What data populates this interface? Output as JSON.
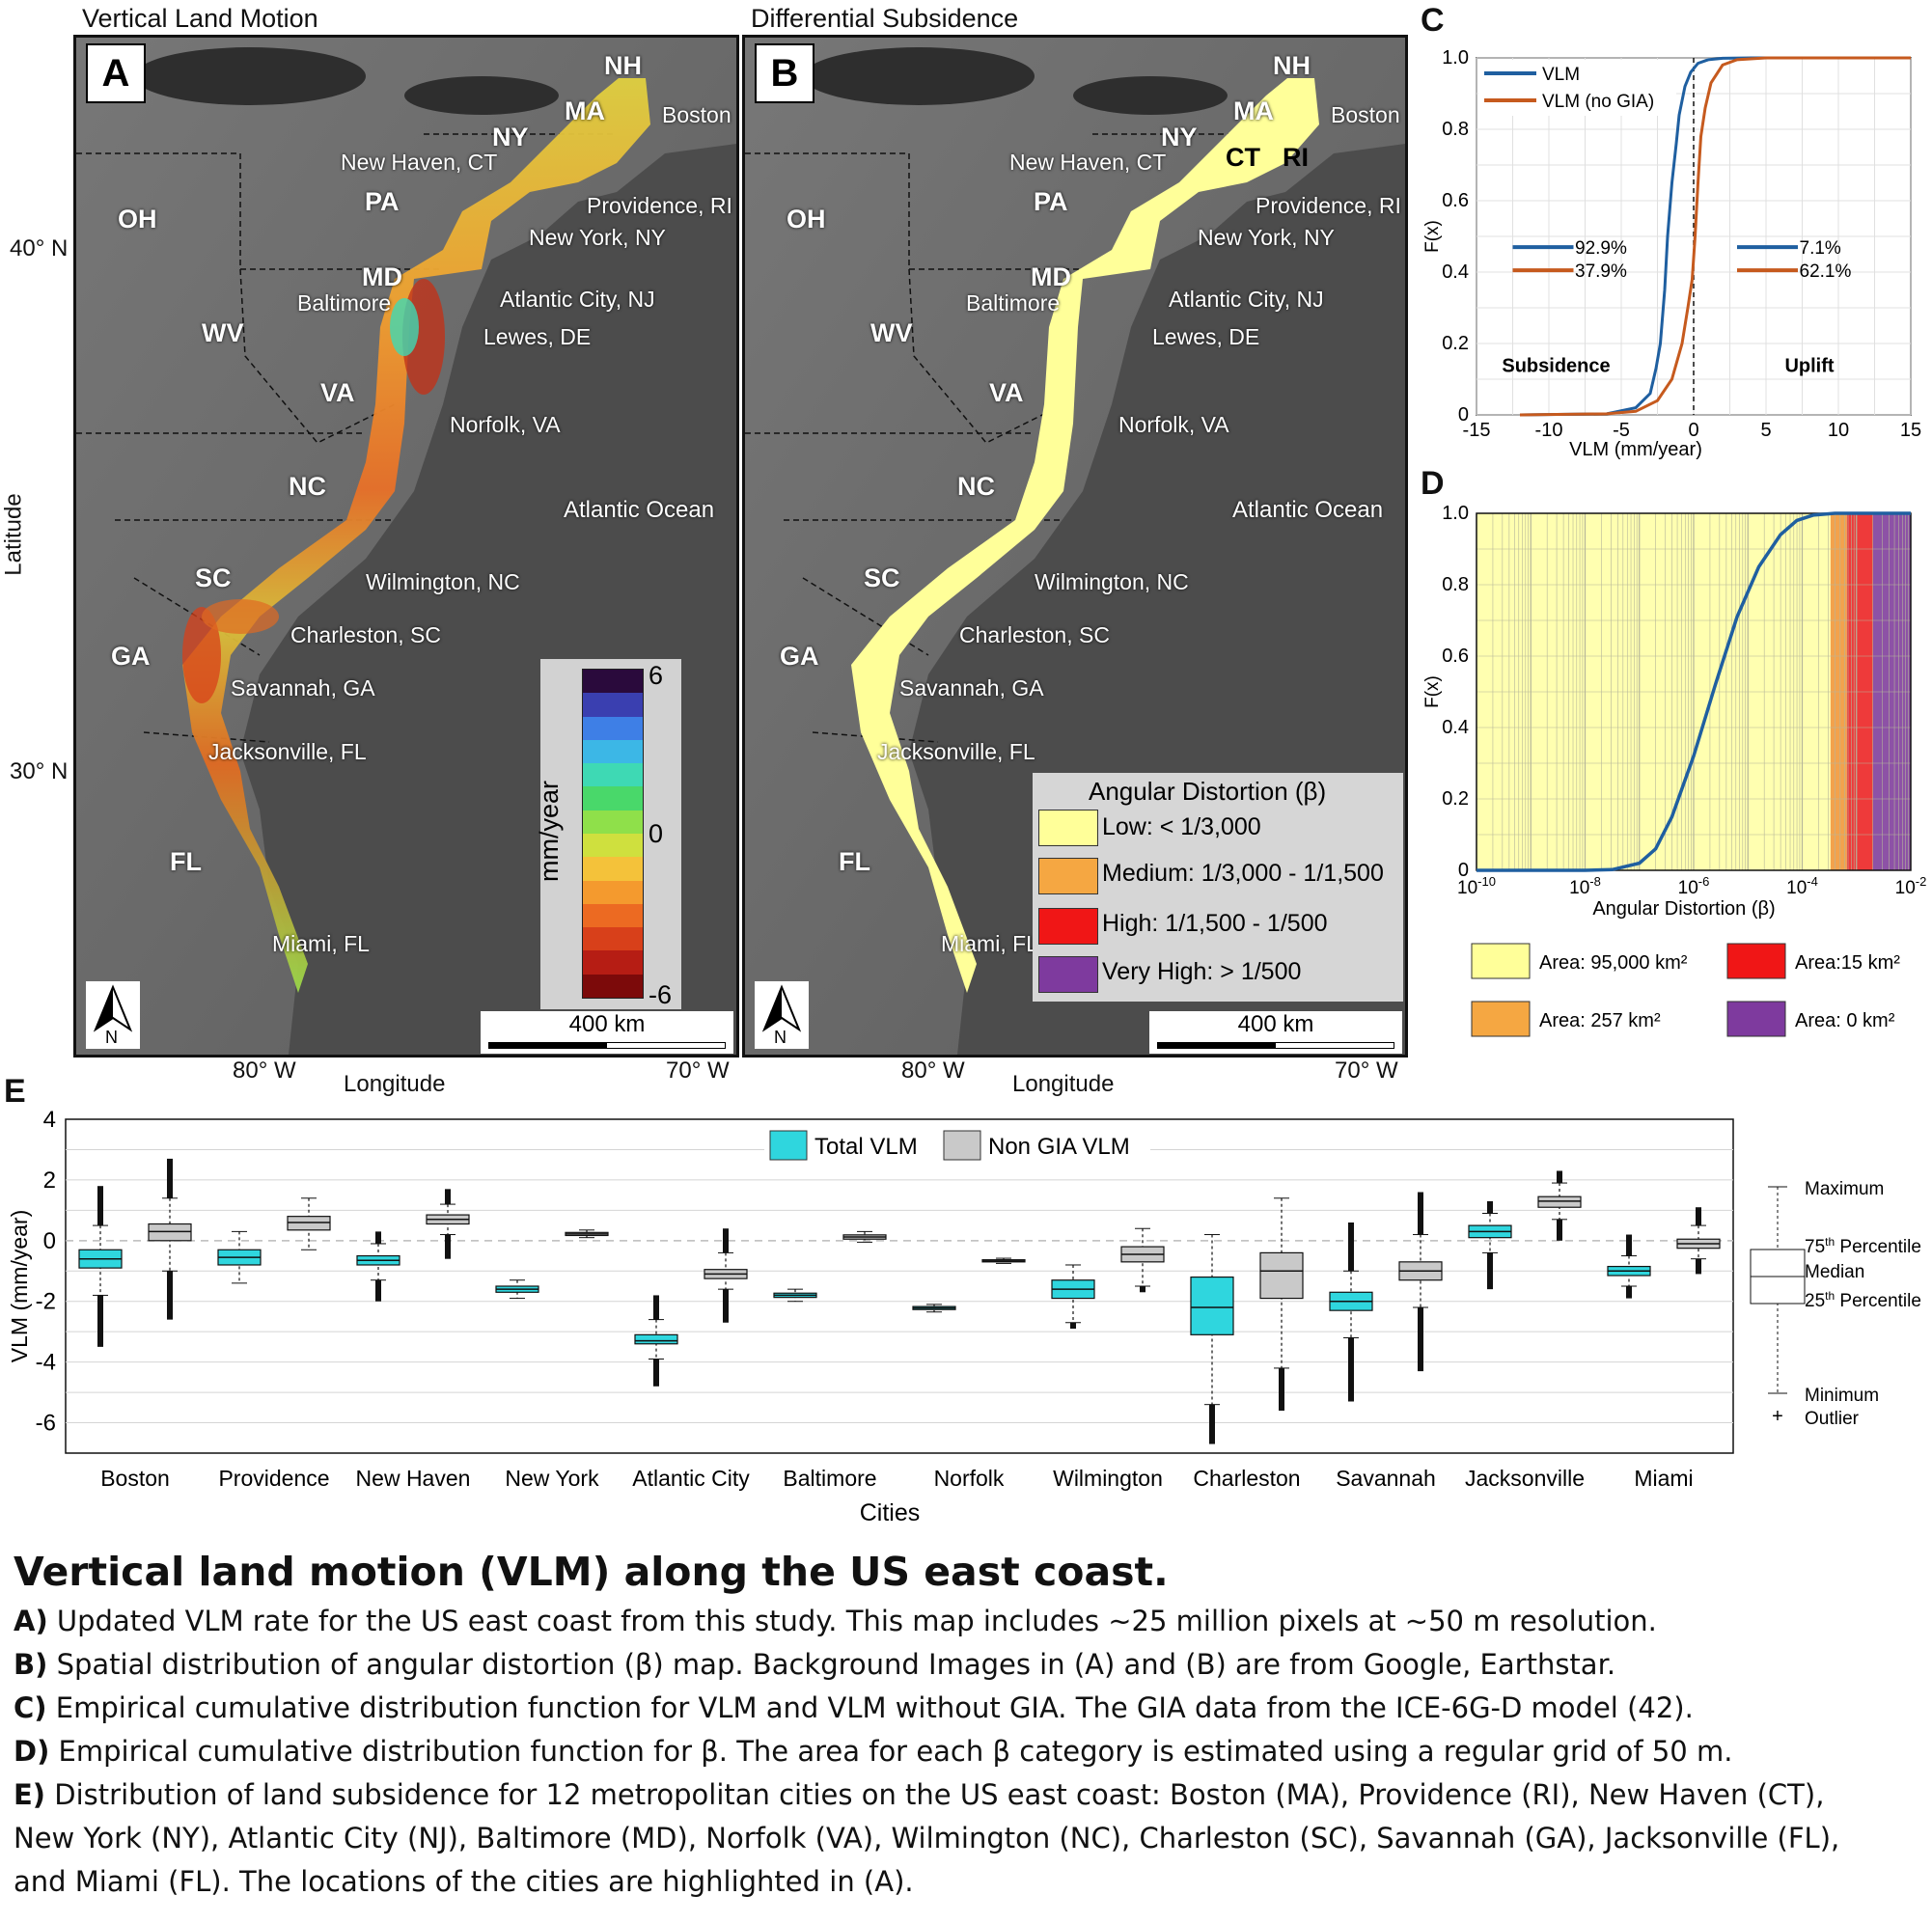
{
  "panelA": {
    "letter": "A",
    "title": "Vertical Land Motion",
    "states": [
      "NH",
      "MA",
      "NY",
      "PA",
      "OH",
      "MD",
      "WV",
      "VA",
      "NC",
      "SC",
      "GA",
      "FL"
    ],
    "cities": [
      "Boston",
      "New Haven, CT",
      "Providence, RI",
      "New York, NY",
      "Baltimore",
      "Atlantic City, NJ",
      "Lewes, DE",
      "Norfolk, VA",
      "Atlantic Ocean",
      "Wilmington, NC",
      "Charleston, SC",
      "Savannah, GA",
      "Jacksonville, FL",
      "Miami, FL"
    ],
    "colorbar_unit": "mm/year",
    "colorbar_ticks": [
      "6",
      "0",
      "-6"
    ],
    "colorbar_colors": [
      "#2a0a3c",
      "#3a3fb0",
      "#3e7fe6",
      "#3cb7e6",
      "#3ed9b4",
      "#49d86a",
      "#8fe04a",
      "#cfe03e",
      "#f4c23a",
      "#f49a2e",
      "#ec6a22",
      "#d8401a",
      "#b61d14",
      "#7c0a0a"
    ],
    "scale": "400 km",
    "north": "N"
  },
  "panelB": {
    "letter": "B",
    "title": "Differential Subsidence",
    "states": [
      "NH",
      "MA",
      "NY",
      "CT",
      "RI",
      "PA",
      "OH",
      "MD",
      "WV",
      "VA",
      "NC",
      "SC",
      "GA",
      "FL"
    ],
    "cities": [
      "Boston",
      "New Haven, CT",
      "Providence, RI",
      "New York, NY",
      "Baltimore",
      "Atlantic City, NJ",
      "Lewes, DE",
      "Norfolk, VA",
      "Atlantic Ocean",
      "Wilmington, NC",
      "Charleston, SC",
      "Savannah, GA",
      "Jacksonville, FL",
      "Miami, FL"
    ],
    "legend_title": "Angular Distortion (β)",
    "legend": [
      {
        "label": "Low: < 1/3,000",
        "color": "#ffff99"
      },
      {
        "label": "Medium: 1/3,000 - 1/1,500",
        "color": "#f5a742"
      },
      {
        "label": "High: 1/1,500 - 1/500",
        "color": "#f01616"
      },
      {
        "label": "Very High: > 1/500",
        "color": "#7e3a9e"
      }
    ],
    "scale": "400 km",
    "north": "N"
  },
  "map_axes": {
    "lat_label": "Latitude",
    "lat_ticks": [
      "40° N",
      "30° N"
    ],
    "lon_label": "Longitude",
    "lon_ticks": [
      "80° W",
      "70° W"
    ]
  },
  "chart_data": [
    {
      "panel": "C",
      "type": "line",
      "xlabel": "VLM (mm/year)",
      "ylabel": "F(x)",
      "xlim": [
        -15,
        15
      ],
      "ylim": [
        0,
        1
      ],
      "xticks": [
        -15,
        -10,
        -5,
        0,
        5,
        10,
        15
      ],
      "yticks": [
        0,
        0.2,
        0.4,
        0.6,
        0.8,
        1.0
      ],
      "grid": true,
      "legend_position": "top-left",
      "series": [
        {
          "name": "VLM",
          "color": "#1f5fa0",
          "x": [
            -12,
            -6,
            -4,
            -3,
            -2.6,
            -2.3,
            -2.0,
            -1.8,
            -1.5,
            -1.2,
            -1.0,
            -0.6,
            -0.2,
            0.3,
            1,
            2,
            4,
            15
          ],
          "y": [
            0,
            0.003,
            0.02,
            0.06,
            0.13,
            0.2,
            0.35,
            0.5,
            0.65,
            0.76,
            0.84,
            0.92,
            0.96,
            0.985,
            0.995,
            0.999,
            1,
            1
          ]
        },
        {
          "name": "VLM (no GIA)",
          "color": "#c65a1e",
          "x": [
            -12,
            -6,
            -4,
            -2.5,
            -1.5,
            -0.8,
            -0.4,
            -0.1,
            0.1,
            0.3,
            0.5,
            0.8,
            1.2,
            2,
            3,
            5,
            15
          ],
          "y": [
            0,
            0.003,
            0.01,
            0.04,
            0.1,
            0.2,
            0.3,
            0.38,
            0.5,
            0.65,
            0.78,
            0.86,
            0.93,
            0.98,
            0.995,
            1,
            1
          ]
        }
      ],
      "annotations": {
        "left_values": [
          "92.9%",
          "37.9%"
        ],
        "right_values": [
          "7.1%",
          "62.1%"
        ],
        "left_label": "Subsidence",
        "right_label": "Uplift"
      }
    },
    {
      "panel": "D",
      "type": "line",
      "xlabel": "Angular Distortion (β)",
      "ylabel": "F(x)",
      "xscale": "log",
      "xlim": [
        1e-10,
        0.01
      ],
      "ylim": [
        0,
        1
      ],
      "xtick_labels": [
        "10-10",
        "10-8",
        "10-6",
        "10-4",
        "10-2"
      ],
      "yticks": [
        0,
        0.2,
        0.4,
        0.6,
        0.8,
        1.0
      ],
      "bands": [
        {
          "from": 1e-10,
          "to": 0.000333,
          "color": "#ffffb0"
        },
        {
          "from": 0.000333,
          "to": 0.000667,
          "color": "#f3a24c"
        },
        {
          "from": 0.000667,
          "to": 0.002,
          "color": "#ee3a3a"
        },
        {
          "from": 0.002,
          "to": 0.01,
          "color": "#8d52a6"
        }
      ],
      "series": [
        {
          "name": "β",
          "color": "#1f5fa0",
          "log10x": [
            -10,
            -8,
            -7.5,
            -7,
            -6.7,
            -6.4,
            -6.0,
            -5.6,
            -5.2,
            -4.8,
            -4.4,
            -4.1,
            -3.8,
            -3.4,
            -2
          ],
          "y": [
            0,
            0,
            0.002,
            0.02,
            0.06,
            0.15,
            0.32,
            0.52,
            0.71,
            0.85,
            0.94,
            0.98,
            0.995,
            1,
            1
          ]
        }
      ],
      "legend": [
        {
          "label": "Area: 95,000 km²",
          "color": "#ffff99"
        },
        {
          "label": "Area:15 km²",
          "color": "#f01616"
        },
        {
          "label": "Area: 257 km²",
          "color": "#f5a742"
        },
        {
          "label": "Area: 0 km²",
          "color": "#7e3a9e"
        }
      ]
    },
    {
      "panel": "E",
      "type": "box",
      "xlabel": "Cities",
      "ylabel": "VLM (mm/year)",
      "ylim": [
        -7,
        4
      ],
      "yticks": [
        -6,
        -4,
        -2,
        0,
        2,
        4
      ],
      "grid": true,
      "legend_position": "top-center",
      "categories": [
        "Boston",
        "Providence",
        "New Haven",
        "New York",
        "Atlantic City",
        "Baltimore",
        "Norfolk",
        "Wilmington",
        "Charleston",
        "Savannah",
        "Jacksonville",
        "Miami"
      ],
      "series": [
        {
          "name": "Total VLM",
          "color": "#2fd6de",
          "boxes": [
            {
              "whislo": -1.8,
              "q1": -0.9,
              "med": -0.6,
              "q3": -0.3,
              "whishi": 0.5,
              "fliers": [
                -3.5,
                1.8
              ]
            },
            {
              "whislo": -1.4,
              "q1": -0.8,
              "med": -0.55,
              "q3": -0.3,
              "whishi": 0.3,
              "fliers": []
            },
            {
              "whislo": -1.3,
              "q1": -0.8,
              "med": -0.65,
              "q3": -0.5,
              "whishi": -0.1,
              "fliers": [
                -2.0,
                0.3
              ]
            },
            {
              "whislo": -1.9,
              "q1": -1.7,
              "med": -1.6,
              "q3": -1.5,
              "whishi": -1.3,
              "fliers": []
            },
            {
              "whislo": -3.9,
              "q1": -3.4,
              "med": -3.3,
              "q3": -3.1,
              "whishi": -2.6,
              "fliers": [
                -4.8,
                -1.8
              ]
            },
            {
              "whislo": -2.0,
              "q1": -1.87,
              "med": -1.8,
              "q3": -1.73,
              "whishi": -1.6,
              "fliers": []
            },
            {
              "whislo": -2.35,
              "q1": -2.27,
              "med": -2.22,
              "q3": -2.17,
              "whishi": -2.1,
              "fliers": []
            },
            {
              "whislo": -2.7,
              "q1": -1.9,
              "med": -1.6,
              "q3": -1.3,
              "whishi": -0.8,
              "fliers": [
                -2.9
              ]
            },
            {
              "whislo": -5.4,
              "q1": -3.1,
              "med": -2.2,
              "q3": -1.2,
              "whishi": 0.2,
              "fliers": [
                -6.7
              ]
            },
            {
              "whislo": -3.2,
              "q1": -2.3,
              "med": -2.0,
              "q3": -1.7,
              "whishi": -1.0,
              "fliers": [
                -5.3,
                0.6
              ]
            },
            {
              "whislo": -0.4,
              "q1": 0.1,
              "med": 0.3,
              "q3": 0.5,
              "whishi": 0.9,
              "fliers": [
                -1.6,
                1.3
              ]
            },
            {
              "whislo": -1.5,
              "q1": -1.15,
              "med": -1.0,
              "q3": -0.85,
              "whishi": -0.5,
              "fliers": [
                -1.9,
                0.2
              ]
            }
          ]
        },
        {
          "name": "Non GIA VLM",
          "color": "#c9c9c9",
          "boxes": [
            {
              "whislo": -1.0,
              "q1": 0.0,
              "med": 0.3,
              "q3": 0.55,
              "whishi": 1.4,
              "fliers": [
                -2.6,
                2.7
              ]
            },
            {
              "whislo": -0.3,
              "q1": 0.35,
              "med": 0.6,
              "q3": 0.8,
              "whishi": 1.4,
              "fliers": []
            },
            {
              "whislo": 0.2,
              "q1": 0.55,
              "med": 0.7,
              "q3": 0.85,
              "whishi": 1.2,
              "fliers": [
                -0.6,
                1.7
              ]
            },
            {
              "whislo": 0.1,
              "q1": 0.17,
              "med": 0.22,
              "q3": 0.27,
              "whishi": 0.35,
              "fliers": []
            },
            {
              "whislo": -1.6,
              "q1": -1.25,
              "med": -1.1,
              "q3": -0.95,
              "whishi": -0.4,
              "fliers": [
                -2.7,
                0.4
              ]
            },
            {
              "whislo": -0.05,
              "q1": 0.05,
              "med": 0.12,
              "q3": 0.19,
              "whishi": 0.3,
              "fliers": []
            },
            {
              "whislo": -0.75,
              "q1": -0.7,
              "med": -0.67,
              "q3": -0.63,
              "whishi": -0.58,
              "fliers": []
            },
            {
              "whislo": -1.5,
              "q1": -0.7,
              "med": -0.45,
              "q3": -0.2,
              "whishi": 0.4,
              "fliers": [
                -1.7
              ]
            },
            {
              "whislo": -4.2,
              "q1": -1.9,
              "med": -1.0,
              "q3": -0.4,
              "whishi": 1.4,
              "fliers": [
                -5.6
              ]
            },
            {
              "whislo": -2.2,
              "q1": -1.3,
              "med": -1.0,
              "q3": -0.7,
              "whishi": 0.2,
              "fliers": [
                -4.3,
                1.6
              ]
            },
            {
              "whislo": 0.7,
              "q1": 1.1,
              "med": 1.3,
              "q3": 1.45,
              "whishi": 1.9,
              "fliers": [
                0.0,
                2.3
              ]
            },
            {
              "whislo": -0.6,
              "q1": -0.25,
              "med": -0.1,
              "q3": 0.05,
              "whishi": 0.5,
              "fliers": [
                -1.1,
                1.1
              ]
            }
          ]
        }
      ],
      "box_key": [
        "Maximum",
        "75th Percentile",
        "Median",
        "25th Percentile",
        "Minimum",
        "Outlier"
      ]
    }
  ],
  "captions": {
    "title": "Vertical land motion (VLM) along the US east coast.",
    "items": [
      {
        "label": "A)",
        "text": "Updated VLM rate for the US east coast from this study. This map includes ∼25 million pixels at ∼50 m resolution."
      },
      {
        "label": "B)",
        "text": "Spatial distribution of angular distortion (β) map. Background Images in (A) and (B) are from Google, Earthstar."
      },
      {
        "label": "C)",
        "text": "Empirical cumulative distribution function for VLM and VLM without GIA. The GIA data from the ICE-6G-D model (42)."
      },
      {
        "label": "D)",
        "text": "Empirical cumulative distribution function for β. The area for each β category is estimated using a regular grid of 50 m."
      },
      {
        "label": "E)",
        "text": "Distribution of land subsidence for 12 metropolitan cities on the US east coast: Boston (MA), Providence (RI), New Haven (CT),"
      }
    ],
    "line2": "New York (NY), Atlantic City (NJ), Baltimore (MD), Norfolk (VA), Wilmington (NC), Charleston (SC), Savannah (GA), Jacksonville (FL),",
    "line3": "and Miami (FL). The locations of the cities are highlighted in (A)."
  }
}
